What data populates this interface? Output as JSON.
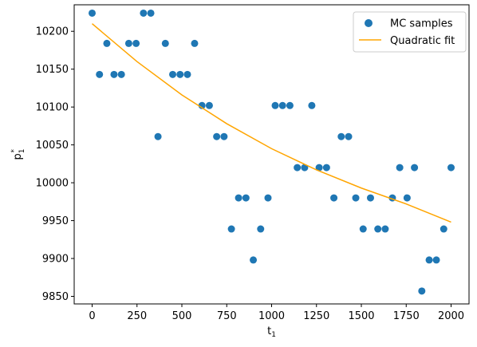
{
  "chart_data": {
    "type": "scatter",
    "title": "",
    "xlabel_base": "t",
    "xlabel_sub": "1",
    "ylabel_base": "p",
    "ylabel_sub": "1",
    "ylabel_sup": "*",
    "xlim": [
      -100,
      2100
    ],
    "ylim": [
      9840,
      10235
    ],
    "xticks": [
      0,
      250,
      500,
      750,
      1000,
      1250,
      1500,
      1750,
      2000
    ],
    "yticks": [
      9850,
      9900,
      9950,
      10000,
      10050,
      10100,
      10150,
      10200
    ],
    "grid": false,
    "legend_position": "top-right",
    "colors": {
      "scatter": "#1f77b4",
      "fit": "#ffa500"
    },
    "series": [
      {
        "name": "MC samples",
        "kind": "scatter",
        "x": [
          0,
          41,
          82,
          122,
          163,
          204,
          245,
          286,
          327,
          367,
          408,
          449,
          490,
          531,
          571,
          612,
          653,
          694,
          735,
          776,
          816,
          857,
          898,
          939,
          980,
          1020,
          1061,
          1102,
          1143,
          1184,
          1224,
          1265,
          1306,
          1347,
          1388,
          1429,
          1469,
          1510,
          1551,
          1592,
          1633,
          1673,
          1714,
          1755,
          1796,
          1837,
          1878,
          1918,
          1959,
          2000
        ],
        "y": [
          10224,
          10143,
          10184,
          10143,
          10143,
          10184,
          10184,
          10224,
          10224,
          10061,
          10184,
          10143,
          10143,
          10143,
          10184,
          10102,
          10102,
          10061,
          10061,
          9939,
          9980,
          9980,
          9898,
          9939,
          9980,
          10102,
          10102,
          10102,
          10020,
          10020,
          10102,
          10020,
          10020,
          9980,
          10061,
          10061,
          9980,
          9939,
          9980,
          9939,
          9939,
          9980,
          10020,
          9980,
          10020,
          9857,
          9898,
          9898,
          9939,
          10020
        ]
      },
      {
        "name": "Quadratic fit",
        "kind": "line",
        "x": [
          0,
          250,
          500,
          750,
          1000,
          1250,
          1500,
          1750,
          2000
        ],
        "y": [
          10210,
          10160,
          10116,
          10078,
          10045,
          10017,
          9993,
          9972,
          9948
        ]
      }
    ]
  }
}
